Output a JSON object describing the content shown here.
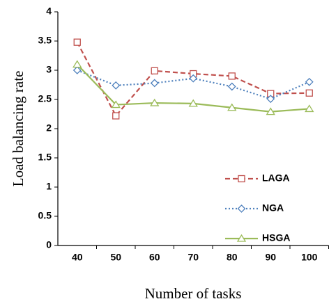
{
  "chart_data": {
    "type": "line",
    "x_label": "Number of tasks",
    "y_label": "Load balancing rate",
    "categories": [
      "40",
      "50",
      "60",
      "70",
      "80",
      "90",
      "100"
    ],
    "series": [
      {
        "name": "LAGA",
        "color": "#c0504d",
        "dash": "dashed",
        "marker": "square",
        "values": [
          3.48,
          2.22,
          2.99,
          2.94,
          2.9,
          2.6,
          2.61
        ]
      },
      {
        "name": "NGA",
        "color": "#4f81bd",
        "dash": "dotted",
        "marker": "diamond",
        "values": [
          3.0,
          2.74,
          2.78,
          2.86,
          2.72,
          2.51,
          2.8
        ]
      },
      {
        "name": "HSGA",
        "color": "#9bbb59",
        "dash": "solid",
        "marker": "triangle",
        "values": [
          3.1,
          2.41,
          2.44,
          2.43,
          2.36,
          2.29,
          2.34
        ]
      }
    ],
    "ylim": [
      0,
      4
    ],
    "yticks": [
      0,
      0.5,
      1,
      1.5,
      2,
      2.5,
      3,
      3.5,
      4
    ],
    "grid": false,
    "legend": "lower right"
  }
}
